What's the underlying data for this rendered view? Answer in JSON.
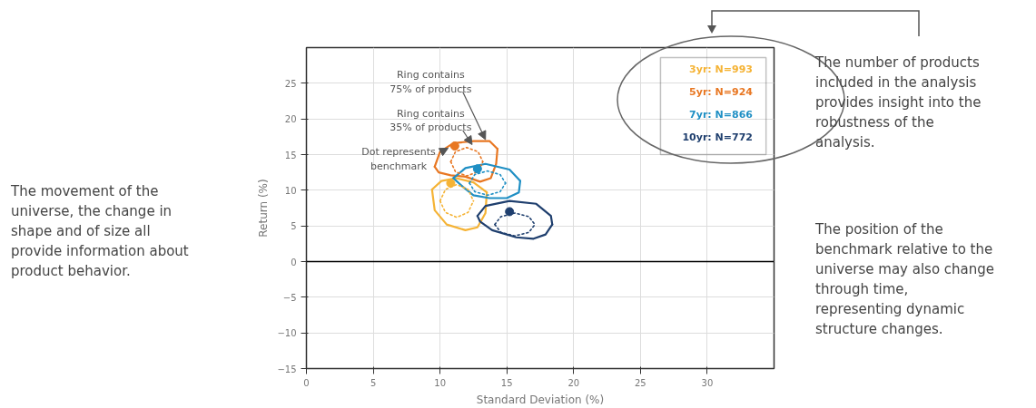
{
  "chart_data": {
    "type": "line",
    "xlabel": "Standard Deviation (%)",
    "ylabel": "Return (%)",
    "xlim": [
      0,
      35
    ],
    "ylim": [
      -15,
      30
    ],
    "xticks": [
      0,
      5,
      10,
      15,
      20,
      25,
      30
    ],
    "yticks": [
      -15,
      -10,
      -5,
      0,
      5,
      10,
      15,
      20,
      25
    ],
    "grid": true,
    "ref_lines": [
      {
        "axis": "y",
        "value": 0,
        "color": "#000000"
      }
    ],
    "series": [
      {
        "name": "3yr: N=993",
        "color": "#f5b335",
        "line_style": "solid",
        "x": [
          9.4,
          10.1,
          11.2,
          12.5,
          13.5
        ],
        "values": [
          10.1,
          11.3,
          11.7,
          11.1,
          9.7
        ]
      },
      {
        "color": "#f5b335",
        "line_style": "solid",
        "x": [
          9.4,
          9.6,
          10.5,
          11.9,
          12.8,
          13.4,
          13.5
        ],
        "values": [
          10.1,
          7.2,
          5.2,
          4.4,
          4.8,
          6.8,
          9.7
        ]
      },
      {
        "name": "5yr: N=924",
        "color": "#e87722",
        "line_style": "solid",
        "x": [
          9.6,
          10.0,
          11.0,
          12.5,
          13.7,
          14.3
        ],
        "values": [
          13.3,
          15.4,
          16.6,
          16.9,
          16.9,
          15.8
        ]
      },
      {
        "color": "#e87722",
        "line_style": "solid",
        "x": [
          9.6,
          9.9,
          10.8,
          11.9,
          13.0,
          13.8,
          14.2,
          14.3
        ],
        "values": [
          13.3,
          12.5,
          12.1,
          11.9,
          11.2,
          11.7,
          13.7,
          15.8
        ]
      },
      {
        "name": "7yr: N=866",
        "color": "#1f8fc4",
        "line_style": "solid",
        "x": [
          11.0,
          11.9,
          13.4,
          15.2,
          16.0
        ],
        "values": [
          11.7,
          13.1,
          13.7,
          12.9,
          11.3
        ]
      },
      {
        "color": "#1f8fc4",
        "line_style": "solid",
        "x": [
          11.0,
          11.7,
          12.5,
          13.7,
          15.0,
          15.9,
          16.0
        ],
        "values": [
          11.7,
          10.5,
          9.3,
          8.9,
          8.9,
          9.7,
          11.3
        ]
      },
      {
        "name": "10yr: N=772",
        "color": "#1f3f6e",
        "line_style": "solid",
        "x": [
          12.8,
          13.4,
          15.2,
          17.2,
          18.3,
          18.4
        ],
        "values": [
          6.4,
          7.8,
          8.5,
          8.1,
          6.4,
          5.2
        ]
      },
      {
        "color": "#1f3f6e",
        "line_style": "solid",
        "x": [
          12.8,
          13.0,
          13.9,
          15.7,
          17.0,
          17.9,
          18.4
        ],
        "values": [
          6.4,
          5.6,
          4.4,
          3.4,
          3.2,
          3.8,
          5.2
        ]
      },
      {
        "color": "#f5b335",
        "line_style": "dotted",
        "x": [
          10.0,
          10.4,
          11.25,
          12.1,
          12.5
        ],
        "values": [
          8.5,
          10.1,
          10.8,
          10.1,
          8.5
        ]
      },
      {
        "color": "#f5b335",
        "line_style": "dotted",
        "x": [
          10.0,
          10.4,
          11.25,
          12.1,
          12.5
        ],
        "values": [
          8.5,
          6.9,
          6.2,
          6.9,
          8.5
        ]
      },
      {
        "color": "#e87722",
        "line_style": "dotted",
        "x": [
          10.8,
          11.15,
          12.0,
          12.85,
          13.2
        ],
        "values": [
          14.0,
          15.4,
          16.0,
          15.4,
          14.0
        ]
      },
      {
        "color": "#e87722",
        "line_style": "dotted",
        "x": [
          10.8,
          11.15,
          12.0,
          12.85,
          13.2
        ],
        "values": [
          14.0,
          12.6,
          12.0,
          12.6,
          14.0
        ]
      },
      {
        "color": "#1f8fc4",
        "line_style": "dotted",
        "x": [
          12.2,
          12.6,
          13.55,
          14.5,
          14.9
        ],
        "values": [
          11.0,
          12.2,
          12.7,
          12.2,
          11.0
        ]
      },
      {
        "color": "#1f8fc4",
        "line_style": "dotted",
        "x": [
          12.2,
          12.6,
          13.55,
          14.5,
          14.9
        ],
        "values": [
          11.0,
          9.8,
          9.3,
          9.8,
          11.0
        ]
      },
      {
        "color": "#1f3f6e",
        "line_style": "dotted",
        "x": [
          14.1,
          14.55,
          15.6,
          16.65,
          17.1
        ],
        "values": [
          5.2,
          6.3,
          6.8,
          6.3,
          5.2
        ]
      },
      {
        "color": "#1f3f6e",
        "line_style": "dotted",
        "x": [
          14.1,
          14.55,
          15.6,
          16.65,
          17.1
        ],
        "values": [
          5.2,
          4.1,
          3.6,
          4.1,
          5.2
        ]
      },
      {
        "type": "scatter",
        "marker": "circle",
        "color": "#f5b335",
        "x": [
          10.8
        ],
        "values": [
          11.0
        ]
      },
      {
        "type": "scatter",
        "marker": "circle",
        "color": "#e87722",
        "x": [
          11.1
        ],
        "values": [
          16.2
        ]
      },
      {
        "type": "scatter",
        "marker": "circle",
        "color": "#1f8fc4",
        "x": [
          12.8
        ],
        "values": [
          13.0
        ]
      },
      {
        "type": "scatter",
        "marker": "circle",
        "color": "#1f3f6e",
        "x": [
          15.2
        ],
        "values": [
          7.0
        ]
      }
    ],
    "annotations": [
      {
        "text": "Ring contains 75% of products",
        "x": 13.4,
        "y": 17.1
      },
      {
        "text": "Ring contains 35% of products",
        "x": 12.4,
        "y": 16.4
      },
      {
        "text": "Dot represents benchmark",
        "x": 10.6,
        "y": 15.9
      },
      "The movement of the universe, the change in shape and of size all provide information about product behavior.",
      "The number of products included in the analysis provides insight into the robustness of the analysis.",
      "The position of the benchmark relative to the universe may also change through time, representing dynamic structure changes."
    ]
  }
}
